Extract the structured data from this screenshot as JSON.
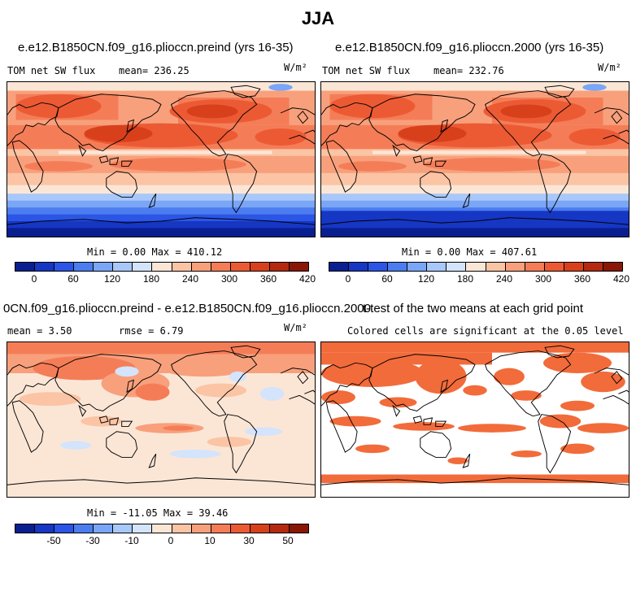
{
  "figure": {
    "title": "JJA"
  },
  "colors": {
    "palette": [
      "#0a1f8f",
      "#1636c4",
      "#2a55e6",
      "#4b7df0",
      "#7aa6f7",
      "#a8c8fb",
      "#d3e4fc",
      "#fbe6d6",
      "#fbc4a4",
      "#f8a07c",
      "#f47d57",
      "#ec5a34",
      "#d8401c",
      "#b42a10",
      "#8a1705"
    ],
    "sig_color": "#f26b3a",
    "land_outline": "#000000"
  },
  "panels": [
    {
      "title": "e.e12.B1850CN.f09_g16.plioccn.preind (yrs 16-35)",
      "variable": "TOM net SW flux",
      "mean_text": "mean= 236.25",
      "units": "W/m²",
      "minmax_text": "Min =    0.00 Max = 410.12",
      "ticks": [
        "0",
        "60",
        "120",
        "180",
        "240",
        "300",
        "360",
        "420"
      ]
    },
    {
      "title": "e.e12.B1850CN.f09_g16.plioccn.2000 (yrs 16-35)",
      "variable": "TOM net SW flux",
      "mean_text": "mean= 232.76",
      "units": "W/m²",
      "minmax_text": "Min =    0.00 Max = 407.61",
      "ticks": [
        "0",
        "60",
        "120",
        "180",
        "240",
        "300",
        "360",
        "420"
      ]
    },
    {
      "title": "0CN.f09_g16.plioccn.preind - e.e12.B1850CN.f09_g16.plioccn.2000",
      "mean_text": "mean =    3.50",
      "rmse_text": "rmse =    6.79",
      "units": "W/m²",
      "minmax_text": "Min = -11.05 Max =  39.46",
      "ticks": [
        "-50",
        "-30",
        "-10",
        "0",
        "10",
        "30",
        "50"
      ]
    },
    {
      "title": "t-test of the two means at each grid point",
      "subtitle": "Colored cells are significant at the 0.05 level"
    }
  ],
  "chart_data": [
    {
      "type": "heatmap",
      "title": "e.e12.B1850CN.f09_g16.plioccn.preind (yrs 16-35)",
      "variable": "TOM net SW flux",
      "units": "W/m²",
      "mean": 236.25,
      "min": 0.0,
      "max": 410.12,
      "colorbar_levels": [
        0,
        30,
        60,
        90,
        120,
        150,
        180,
        210,
        240,
        270,
        300,
        330,
        360,
        390,
        420
      ],
      "colorbar_ticks": [
        0,
        60,
        120,
        180,
        240,
        300,
        360,
        420
      ]
    },
    {
      "type": "heatmap",
      "title": "e.e12.B1850CN.f09_g16.plioccn.2000 (yrs 16-35)",
      "variable": "TOM net SW flux",
      "units": "W/m²",
      "mean": 232.76,
      "min": 0.0,
      "max": 407.61,
      "colorbar_levels": [
        0,
        30,
        60,
        90,
        120,
        150,
        180,
        210,
        240,
        270,
        300,
        330,
        360,
        390,
        420
      ],
      "colorbar_ticks": [
        0,
        60,
        120,
        180,
        240,
        300,
        360,
        420
      ]
    },
    {
      "type": "heatmap",
      "title": "0CN.f09_g16.plioccn.preind - e.e12.B1850CN.f09_g16.plioccn.2000",
      "units": "W/m²",
      "mean": 3.5,
      "rmse": 6.79,
      "min": -11.05,
      "max": 39.46,
      "colorbar_ticks": [
        -50,
        -30,
        -10,
        0,
        10,
        30,
        50
      ]
    },
    {
      "type": "heatmap",
      "title": "t-test of the two means at each grid point",
      "subtitle": "Colored cells are significant at the 0.05 level"
    }
  ]
}
